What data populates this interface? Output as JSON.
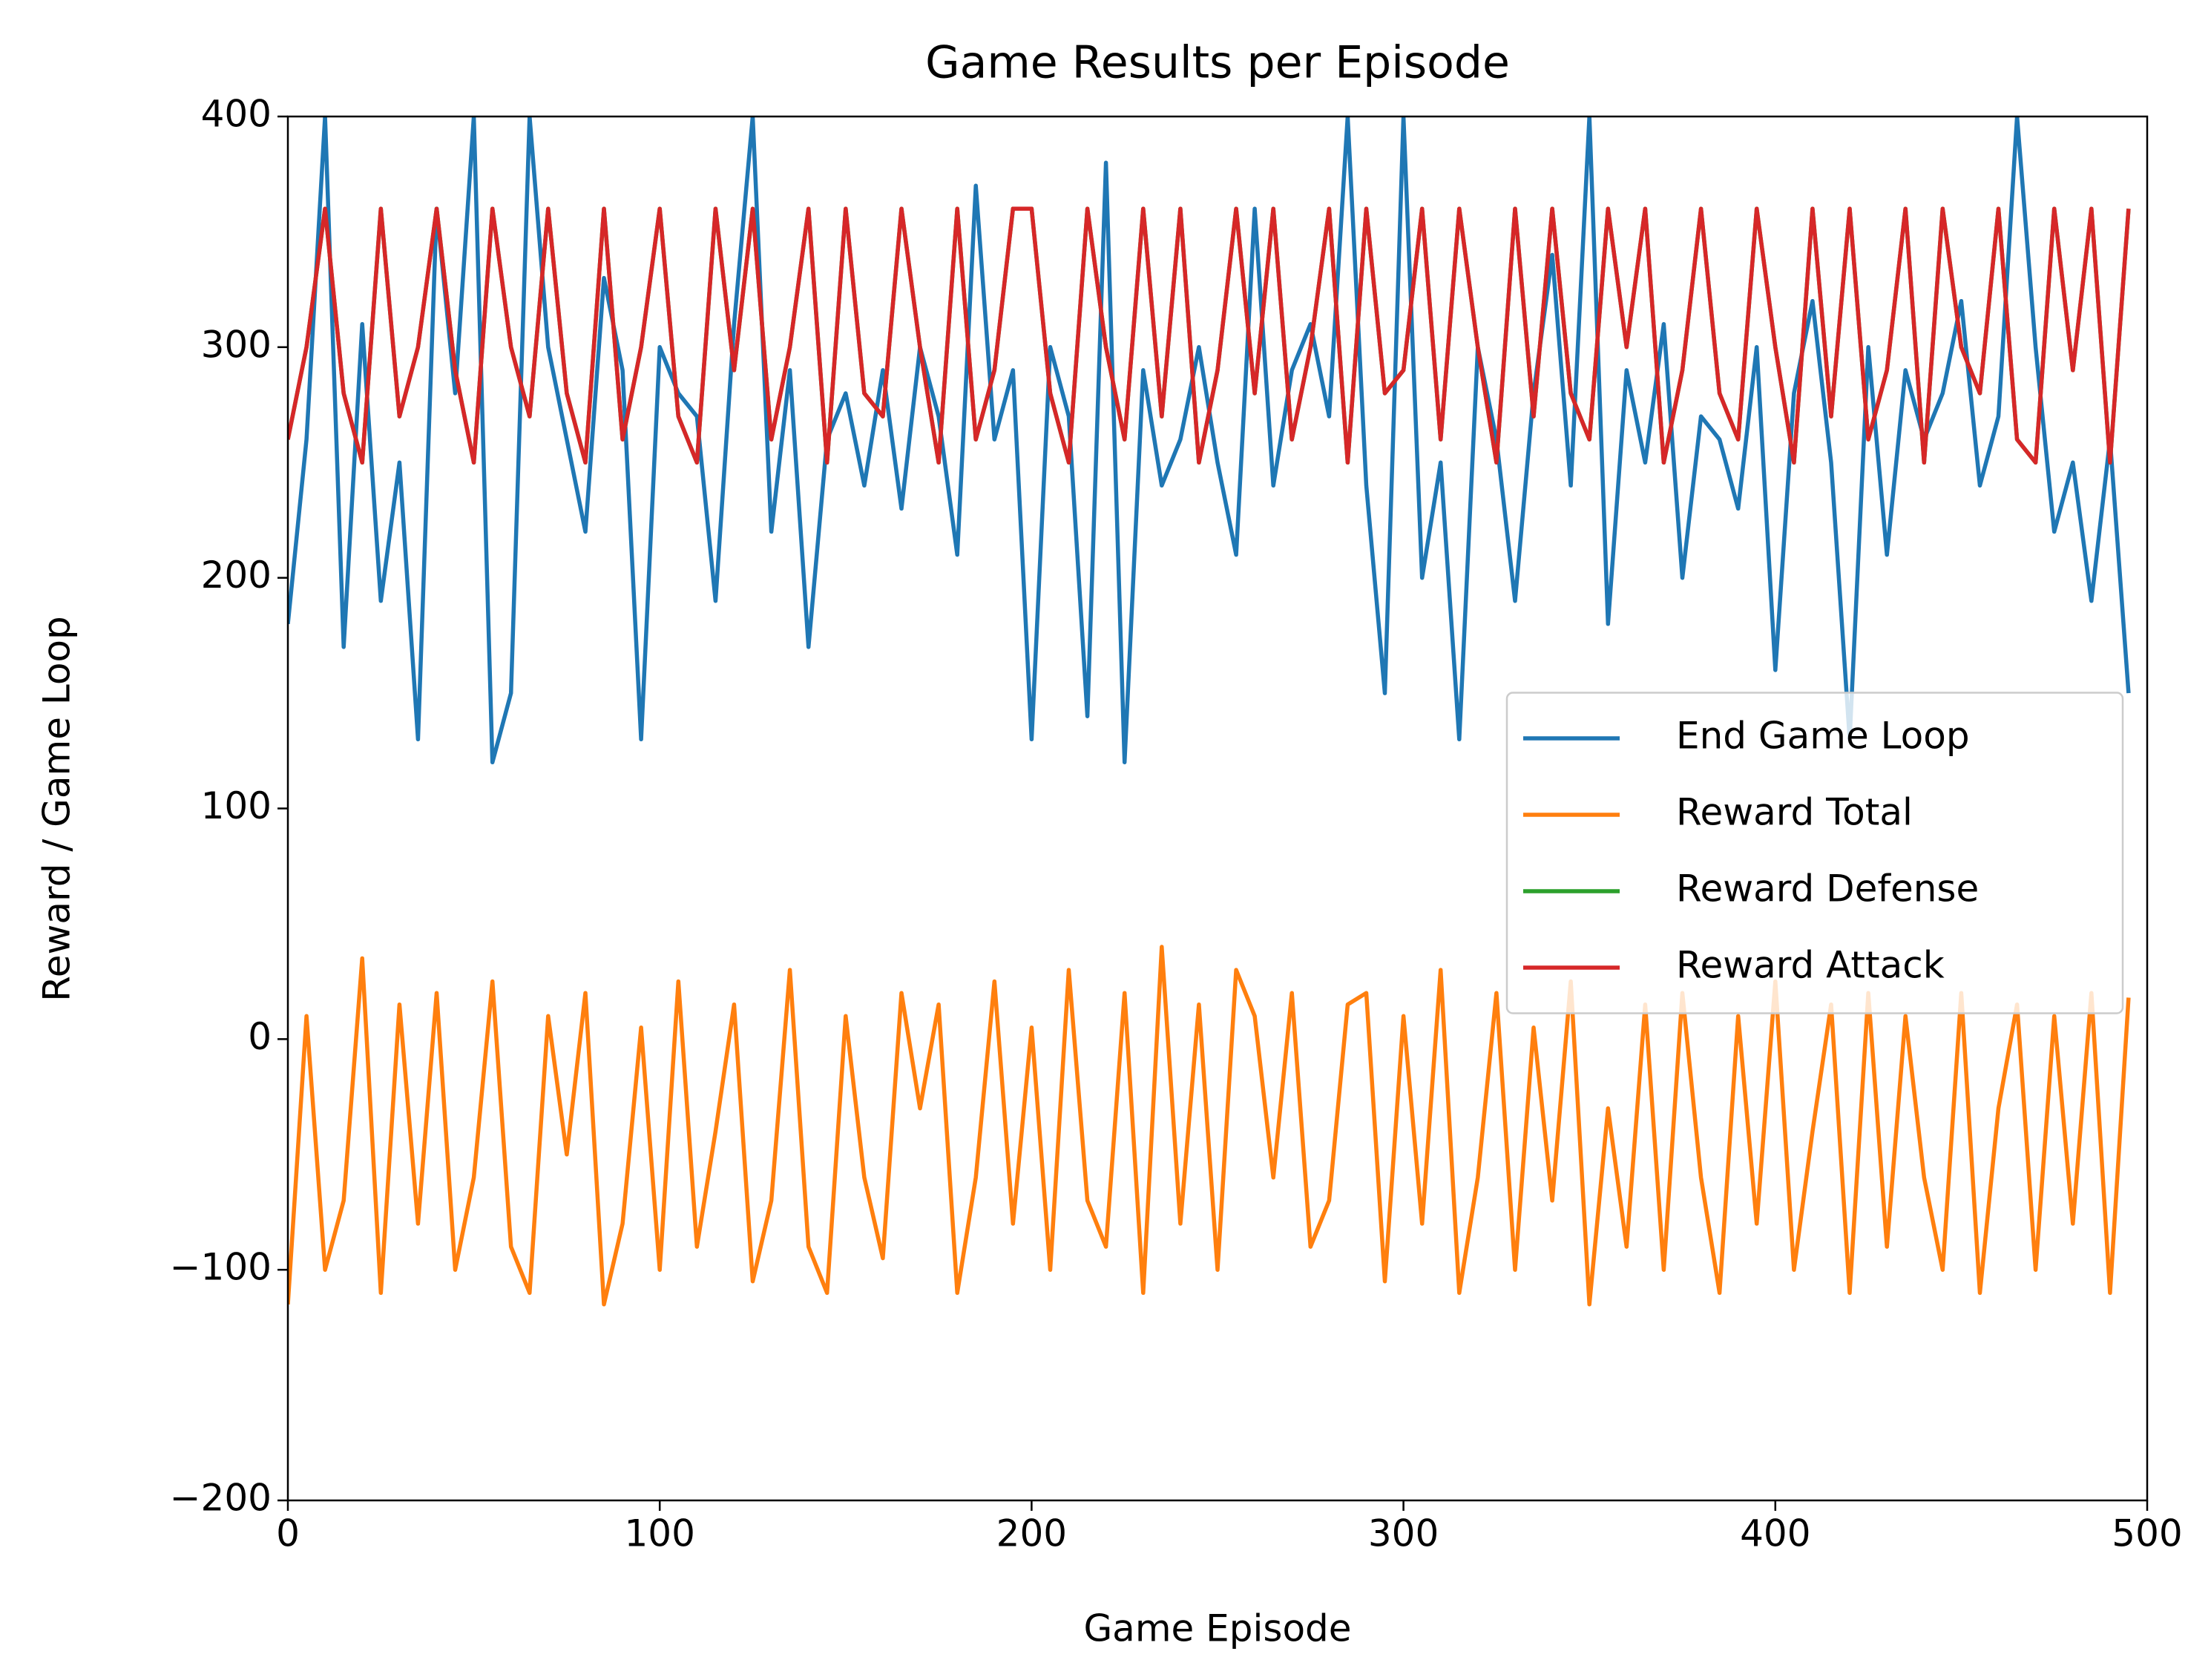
{
  "chart_data": {
    "type": "line",
    "title": "Game Results per Episode",
    "x_label": "Game Episode",
    "y_label": "Reward / Game Loop",
    "xlim": [
      0,
      500
    ],
    "ylim": [
      -200,
      400
    ],
    "xticks": [
      0,
      100,
      200,
      300,
      400,
      500
    ],
    "yticks": [
      {
        "value": -200,
        "label": "−200"
      },
      {
        "value": -100,
        "label": "−100"
      },
      0,
      100,
      200,
      300,
      400
    ],
    "legend": "center right",
    "x": [
      0,
      5,
      10,
      15,
      20,
      25,
      30,
      35,
      40,
      45,
      50,
      55,
      60,
      65,
      70,
      75,
      80,
      85,
      90,
      95,
      100,
      105,
      110,
      115,
      120,
      125,
      130,
      135,
      140,
      145,
      150,
      155,
      160,
      165,
      170,
      175,
      180,
      185,
      190,
      195,
      200,
      205,
      210,
      215,
      220,
      225,
      230,
      235,
      240,
      245,
      250,
      255,
      260,
      265,
      270,
      275,
      280,
      285,
      290,
      295,
      300,
      305,
      310,
      315,
      320,
      325,
      330,
      335,
      340,
      345,
      350,
      355,
      360,
      365,
      370,
      375,
      380,
      385,
      390,
      395,
      400,
      405,
      410,
      415,
      420,
      425,
      430,
      435,
      440,
      445,
      450,
      455,
      460,
      465,
      470,
      475,
      480,
      485,
      490,
      495
    ],
    "series": [
      {
        "name": "End Game Loop",
        "color": "#1f77b4",
        "values": [
          180,
          260,
          400,
          170,
          310,
          190,
          250,
          130,
          360,
          280,
          400,
          120,
          150,
          400,
          300,
          260,
          220,
          330,
          290,
          130,
          300,
          280,
          270,
          190,
          310,
          400,
          220,
          290,
          170,
          260,
          280,
          240,
          290,
          230,
          300,
          270,
          210,
          370,
          260,
          290,
          130,
          300,
          270,
          140,
          380,
          120,
          290,
          240,
          260,
          300,
          250,
          210,
          360,
          240,
          290,
          310,
          270,
          400,
          240,
          150,
          400,
          200,
          250,
          130,
          300,
          260,
          190,
          280,
          340,
          240,
          400,
          180,
          290,
          250,
          310,
          200,
          270,
          260,
          230,
          300,
          160,
          280,
          320,
          250,
          130,
          300,
          210,
          290,
          260,
          280,
          320,
          240,
          270,
          400,
          300,
          220,
          250,
          190,
          260,
          150
        ]
      },
      {
        "name": "Reward Total",
        "color": "#ff7f0e",
        "values": [
          -115,
          10,
          -100,
          -70,
          35,
          -110,
          15,
          -80,
          20,
          -100,
          -60,
          25,
          -90,
          -110,
          10,
          -50,
          20,
          -115,
          -80,
          5,
          -100,
          25,
          -90,
          -40,
          15,
          -105,
          -70,
          30,
          -90,
          -110,
          10,
          -60,
          -95,
          20,
          -30,
          15,
          -110,
          -60,
          25,
          -80,
          5,
          -100,
          30,
          -70,
          -90,
          20,
          -110,
          40,
          -80,
          15,
          -100,
          30,
          10,
          -60,
          20,
          -90,
          -70,
          15,
          20,
          -105,
          10,
          -80,
          30,
          -110,
          -60,
          20,
          -100,
          5,
          -70,
          25,
          -115,
          -30,
          -90,
          15,
          -100,
          20,
          -60,
          -110,
          10,
          -80,
          25,
          -100,
          -40,
          15,
          -110,
          20,
          -90,
          10,
          -60,
          -100,
          20,
          -110,
          -30,
          15,
          -100,
          10,
          -80,
          20,
          -110,
          18
        ]
      },
      {
        "name": "Reward Defense",
        "color": "#2ca02c",
        "values": [
          260,
          300,
          360,
          280,
          250,
          360,
          270,
          300,
          360,
          290,
          250,
          360,
          300,
          270,
          360,
          280,
          250,
          360,
          260,
          300,
          360,
          270,
          250,
          360,
          290,
          360,
          260,
          300,
          360,
          250,
          360,
          280,
          270,
          360,
          300,
          250,
          360,
          260,
          290,
          360,
          360,
          280,
          250,
          360,
          300,
          260,
          360,
          270,
          360,
          250,
          290,
          360,
          280,
          360,
          260,
          300,
          360,
          250,
          360,
          280,
          290,
          360,
          260,
          360,
          300,
          250,
          360,
          270,
          360,
          280,
          260,
          360,
          300,
          360,
          250,
          290,
          360,
          280,
          260,
          360,
          300,
          250,
          360,
          270,
          360,
          260,
          290,
          360,
          250,
          360,
          300,
          280,
          360,
          260,
          250,
          360,
          290,
          360,
          250,
          360
        ]
      },
      {
        "name": "Reward Attack",
        "color": "#d62728",
        "values": [
          260,
          300,
          360,
          280,
          250,
          360,
          270,
          300,
          360,
          290,
          250,
          360,
          300,
          270,
          360,
          280,
          250,
          360,
          260,
          300,
          360,
          270,
          250,
          360,
          290,
          360,
          260,
          300,
          360,
          250,
          360,
          280,
          270,
          360,
          300,
          250,
          360,
          260,
          290,
          360,
          360,
          280,
          250,
          360,
          300,
          260,
          360,
          270,
          360,
          250,
          290,
          360,
          280,
          360,
          260,
          300,
          360,
          250,
          360,
          280,
          290,
          360,
          260,
          360,
          300,
          250,
          360,
          270,
          360,
          280,
          260,
          360,
          300,
          360,
          250,
          290,
          360,
          280,
          260,
          360,
          300,
          250,
          360,
          270,
          360,
          260,
          290,
          360,
          250,
          360,
          300,
          280,
          360,
          260,
          250,
          360,
          290,
          360,
          250,
          360
        ]
      }
    ]
  }
}
